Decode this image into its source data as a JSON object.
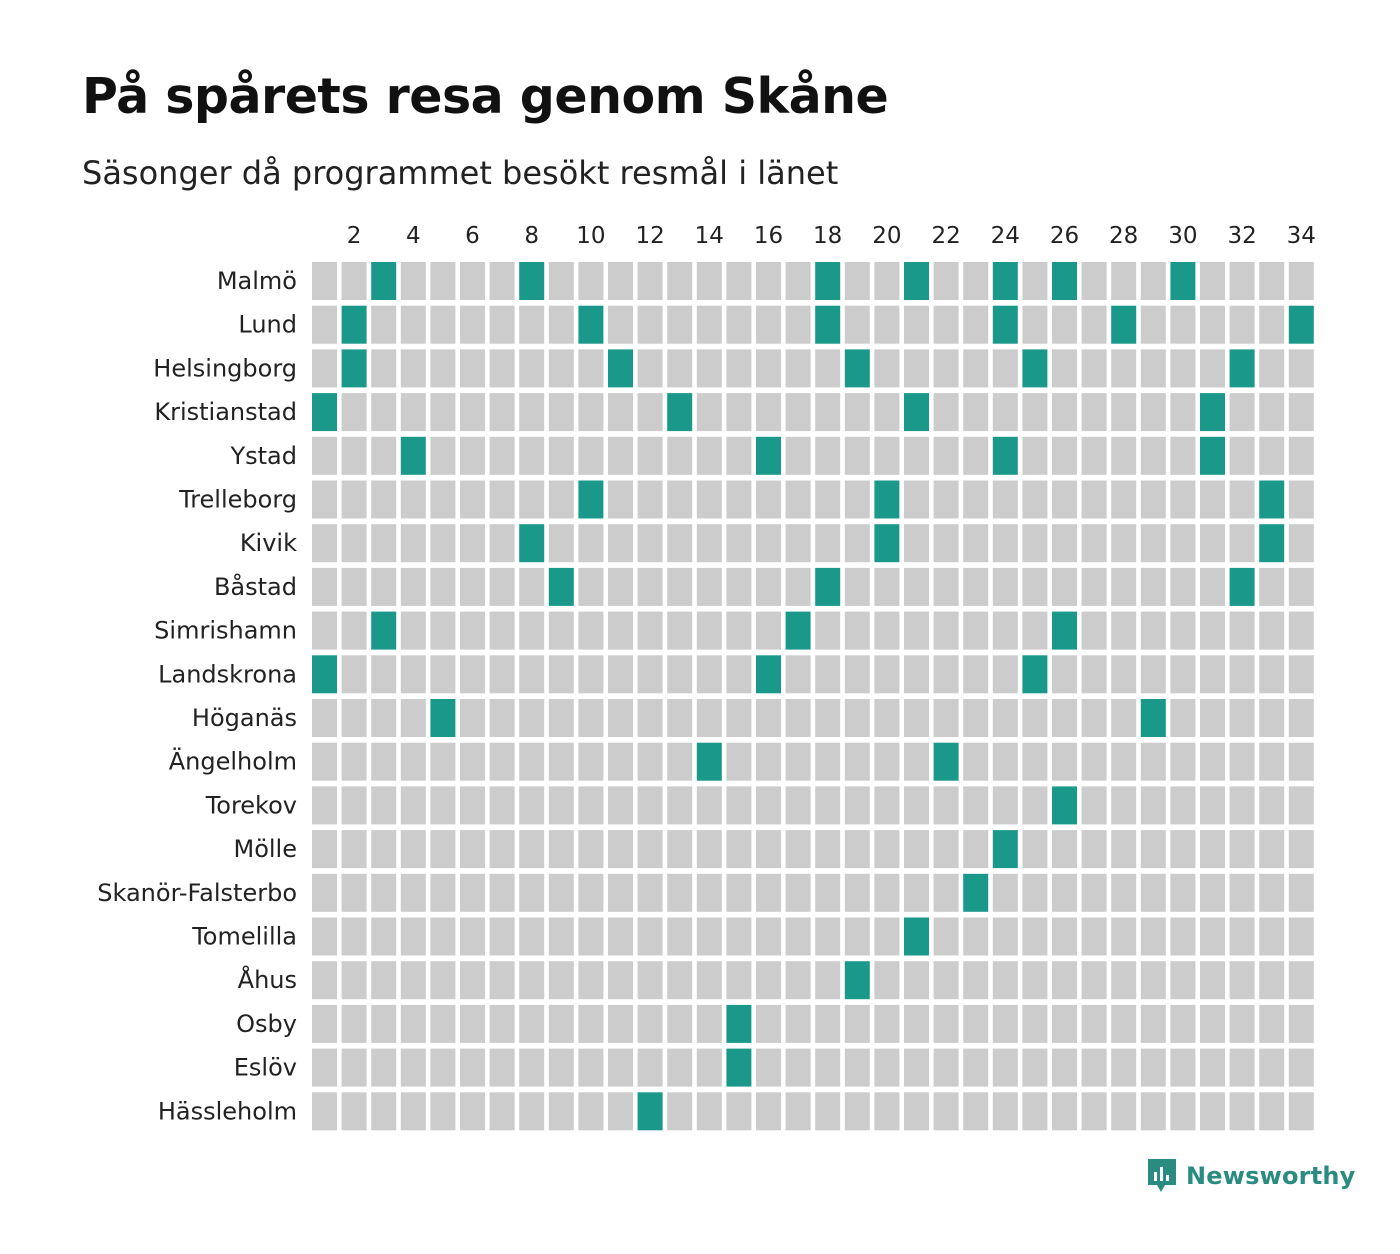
{
  "title": "På spårets resa genom Skåne",
  "subtitle": "Säsonger då programmet besökt resmål i länet",
  "brand": {
    "name": "Newsworthy",
    "icon": "newsworthy-logo-icon",
    "color": "#2a8b80"
  },
  "colors": {
    "visited": "#1a998a",
    "not_visited": "#cccccc"
  },
  "chart_data": {
    "type": "heatmap",
    "title": "På spårets resa genom Skåne",
    "subtitle": "Säsonger då programmet besökt resmål i länet",
    "x": [
      1,
      2,
      3,
      4,
      5,
      6,
      7,
      8,
      9,
      10,
      11,
      12,
      13,
      14,
      15,
      16,
      17,
      18,
      19,
      20,
      21,
      22,
      23,
      24,
      25,
      26,
      27,
      28,
      29,
      30,
      31,
      32,
      33,
      34
    ],
    "x_tick_labels": [
      "2",
      "4",
      "6",
      "8",
      "10",
      "12",
      "14",
      "16",
      "18",
      "20",
      "22",
      "24",
      "26",
      "28",
      "30",
      "32",
      "34"
    ],
    "x_axis_position": "top",
    "rows": [
      {
        "name": "Malmö",
        "seasons": [
          3,
          8,
          18,
          21,
          24,
          26,
          30
        ]
      },
      {
        "name": "Lund",
        "seasons": [
          2,
          10,
          18,
          24,
          28,
          34
        ]
      },
      {
        "name": "Helsingborg",
        "seasons": [
          2,
          11,
          19,
          25,
          32
        ]
      },
      {
        "name": "Kristianstad",
        "seasons": [
          1,
          13,
          21,
          31
        ]
      },
      {
        "name": "Ystad",
        "seasons": [
          4,
          16,
          24,
          31
        ]
      },
      {
        "name": "Trelleborg",
        "seasons": [
          10,
          20,
          33
        ]
      },
      {
        "name": "Kivik",
        "seasons": [
          8,
          20,
          33
        ]
      },
      {
        "name": "Båstad",
        "seasons": [
          9,
          18,
          32
        ]
      },
      {
        "name": "Simrishamn",
        "seasons": [
          3,
          17,
          26
        ]
      },
      {
        "name": "Landskrona",
        "seasons": [
          1,
          16,
          25
        ]
      },
      {
        "name": "Höganäs",
        "seasons": [
          5,
          29
        ]
      },
      {
        "name": "Ängelholm",
        "seasons": [
          14,
          22
        ]
      },
      {
        "name": "Torekov",
        "seasons": [
          26
        ]
      },
      {
        "name": "Mölle",
        "seasons": [
          24
        ]
      },
      {
        "name": "Skanör-Falsterbo",
        "seasons": [
          23
        ]
      },
      {
        "name": "Tomelilla",
        "seasons": [
          21
        ]
      },
      {
        "name": "Åhus",
        "seasons": [
          19
        ]
      },
      {
        "name": "Osby",
        "seasons": [
          15
        ]
      },
      {
        "name": "Eslöv",
        "seasons": [
          15
        ]
      },
      {
        "name": "Hässleholm",
        "seasons": [
          12
        ]
      }
    ],
    "legend": "none"
  }
}
